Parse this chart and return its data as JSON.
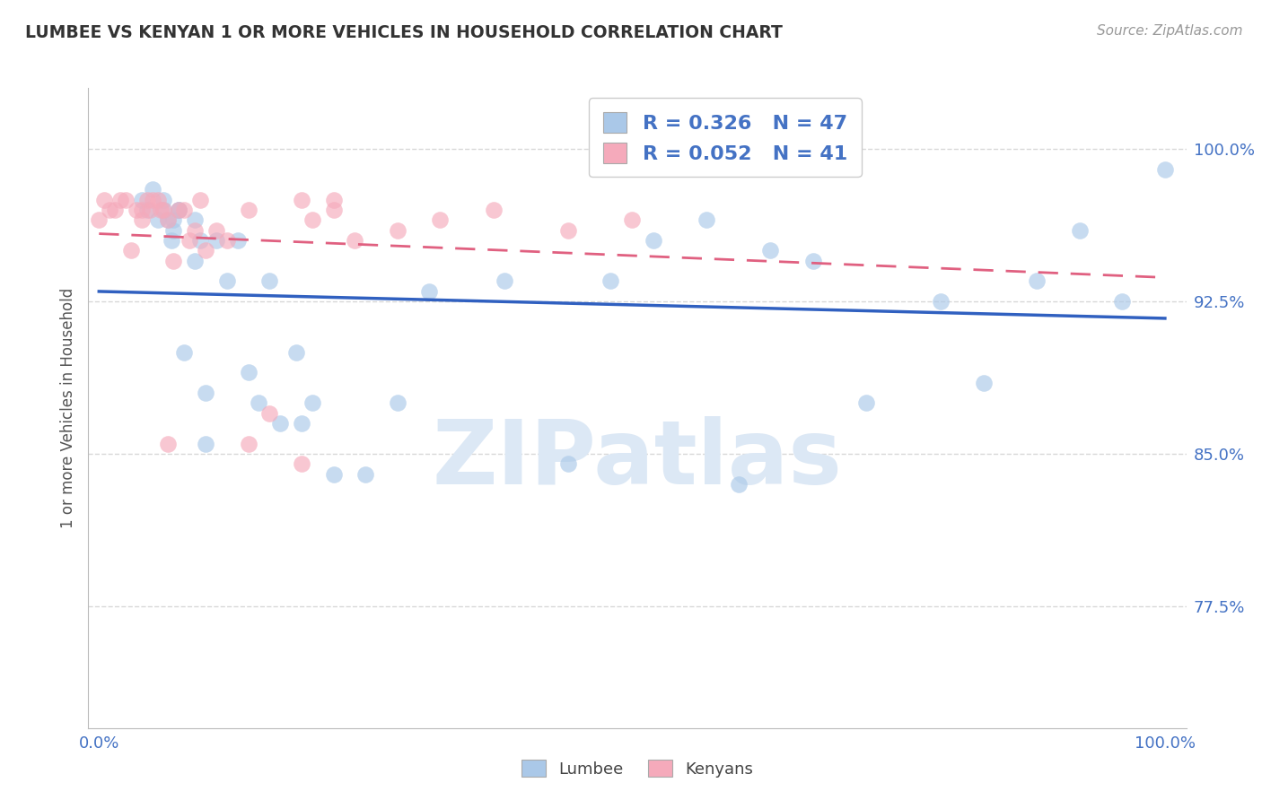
{
  "title": "LUMBEE VS KENYAN 1 OR MORE VEHICLES IN HOUSEHOLD CORRELATION CHART",
  "source": "Source: ZipAtlas.com",
  "ylabel": "1 or more Vehicles in Household",
  "watermark": "ZIPatlas",
  "xlim_min": -0.01,
  "xlim_max": 1.02,
  "ylim_min": 0.715,
  "ylim_max": 1.03,
  "yticks": [
    0.775,
    0.85,
    0.925,
    1.0
  ],
  "ytick_labels": [
    "77.5%",
    "85.0%",
    "92.5%",
    "100.0%"
  ],
  "xtick_vals": [
    0.0,
    1.0
  ],
  "xtick_labels": [
    "0.0%",
    "100.0%"
  ],
  "legend_line1": "R = 0.326   N = 47",
  "legend_line2": "R = 0.052   N = 41",
  "lumbee_fill": "#aac8e8",
  "kenyan_fill": "#f5aabb",
  "lumbee_line_color": "#3060c0",
  "kenyan_line_color": "#e06080",
  "grid_color": "#d8d8d8",
  "title_color": "#333333",
  "tick_color": "#4472c4",
  "legend_text_color": "#4472c4",
  "watermark_color": "#dce8f5",
  "lumbee_x": [
    0.04,
    0.06,
    0.06,
    0.065,
    0.07,
    0.07,
    0.075,
    0.075,
    0.08,
    0.09,
    0.09,
    0.095,
    0.1,
    0.1,
    0.11,
    0.12,
    0.13,
    0.14,
    0.15,
    0.16,
    0.17,
    0.185,
    0.19,
    0.2,
    0.22,
    0.25,
    0.28,
    0.31,
    0.38,
    0.44,
    0.48,
    0.52,
    0.57,
    0.6,
    0.63,
    0.67,
    0.72,
    0.79,
    0.83,
    0.88,
    0.92,
    0.96,
    1.0,
    0.055,
    0.045,
    0.05,
    0.068
  ],
  "lumbee_y": [
    0.975,
    0.975,
    0.97,
    0.965,
    0.965,
    0.96,
    0.97,
    0.97,
    0.9,
    0.965,
    0.945,
    0.955,
    0.88,
    0.855,
    0.955,
    0.935,
    0.955,
    0.89,
    0.875,
    0.935,
    0.865,
    0.9,
    0.865,
    0.875,
    0.84,
    0.84,
    0.875,
    0.93,
    0.935,
    0.845,
    0.935,
    0.955,
    0.965,
    0.835,
    0.95,
    0.945,
    0.875,
    0.925,
    0.885,
    0.935,
    0.96,
    0.925,
    0.99,
    0.965,
    0.97,
    0.98,
    0.955
  ],
  "kenyan_x": [
    0.04,
    0.04,
    0.045,
    0.048,
    0.05,
    0.055,
    0.058,
    0.06,
    0.065,
    0.07,
    0.075,
    0.08,
    0.085,
    0.09,
    0.095,
    0.1,
    0.11,
    0.12,
    0.14,
    0.16,
    0.2,
    0.22,
    0.24,
    0.28,
    0.32,
    0.37,
    0.44,
    0.5,
    0.19,
    0.03,
    0.035,
    0.025,
    0.02,
    0.015,
    0.01,
    0.005,
    0.0,
    0.19,
    0.22,
    0.14,
    0.065
  ],
  "kenyan_y": [
    0.965,
    0.97,
    0.975,
    0.97,
    0.975,
    0.975,
    0.97,
    0.97,
    0.965,
    0.945,
    0.97,
    0.97,
    0.955,
    0.96,
    0.975,
    0.95,
    0.96,
    0.955,
    0.855,
    0.87,
    0.965,
    0.97,
    0.955,
    0.96,
    0.965,
    0.97,
    0.96,
    0.965,
    0.845,
    0.95,
    0.97,
    0.975,
    0.975,
    0.97,
    0.97,
    0.975,
    0.965,
    0.975,
    0.975,
    0.97,
    0.855
  ]
}
